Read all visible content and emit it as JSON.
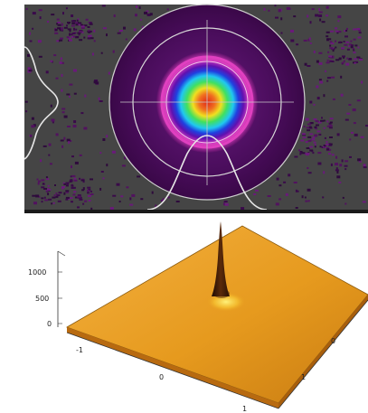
{
  "top_panel": {
    "description_colors": {
      "background": "#454545",
      "noise": "#3a0a4a",
      "outer_disc": "#4a0d5c",
      "ring_outline": "#d8d8d8",
      "ring_magenta": "#e040c0",
      "core_hot": "#e03010"
    }
  },
  "bottom_panel": {
    "z_ticks": [
      "1000",
      "500",
      "0"
    ],
    "x_ticks": [
      "-1",
      "0",
      "1"
    ],
    "y_ticks": [
      "0",
      "1"
    ],
    "colors": {
      "surface": "#e69a1e",
      "surface_dark": "#b86a10",
      "peak": "#3a1a08",
      "highlight": "#ffe060"
    }
  }
}
